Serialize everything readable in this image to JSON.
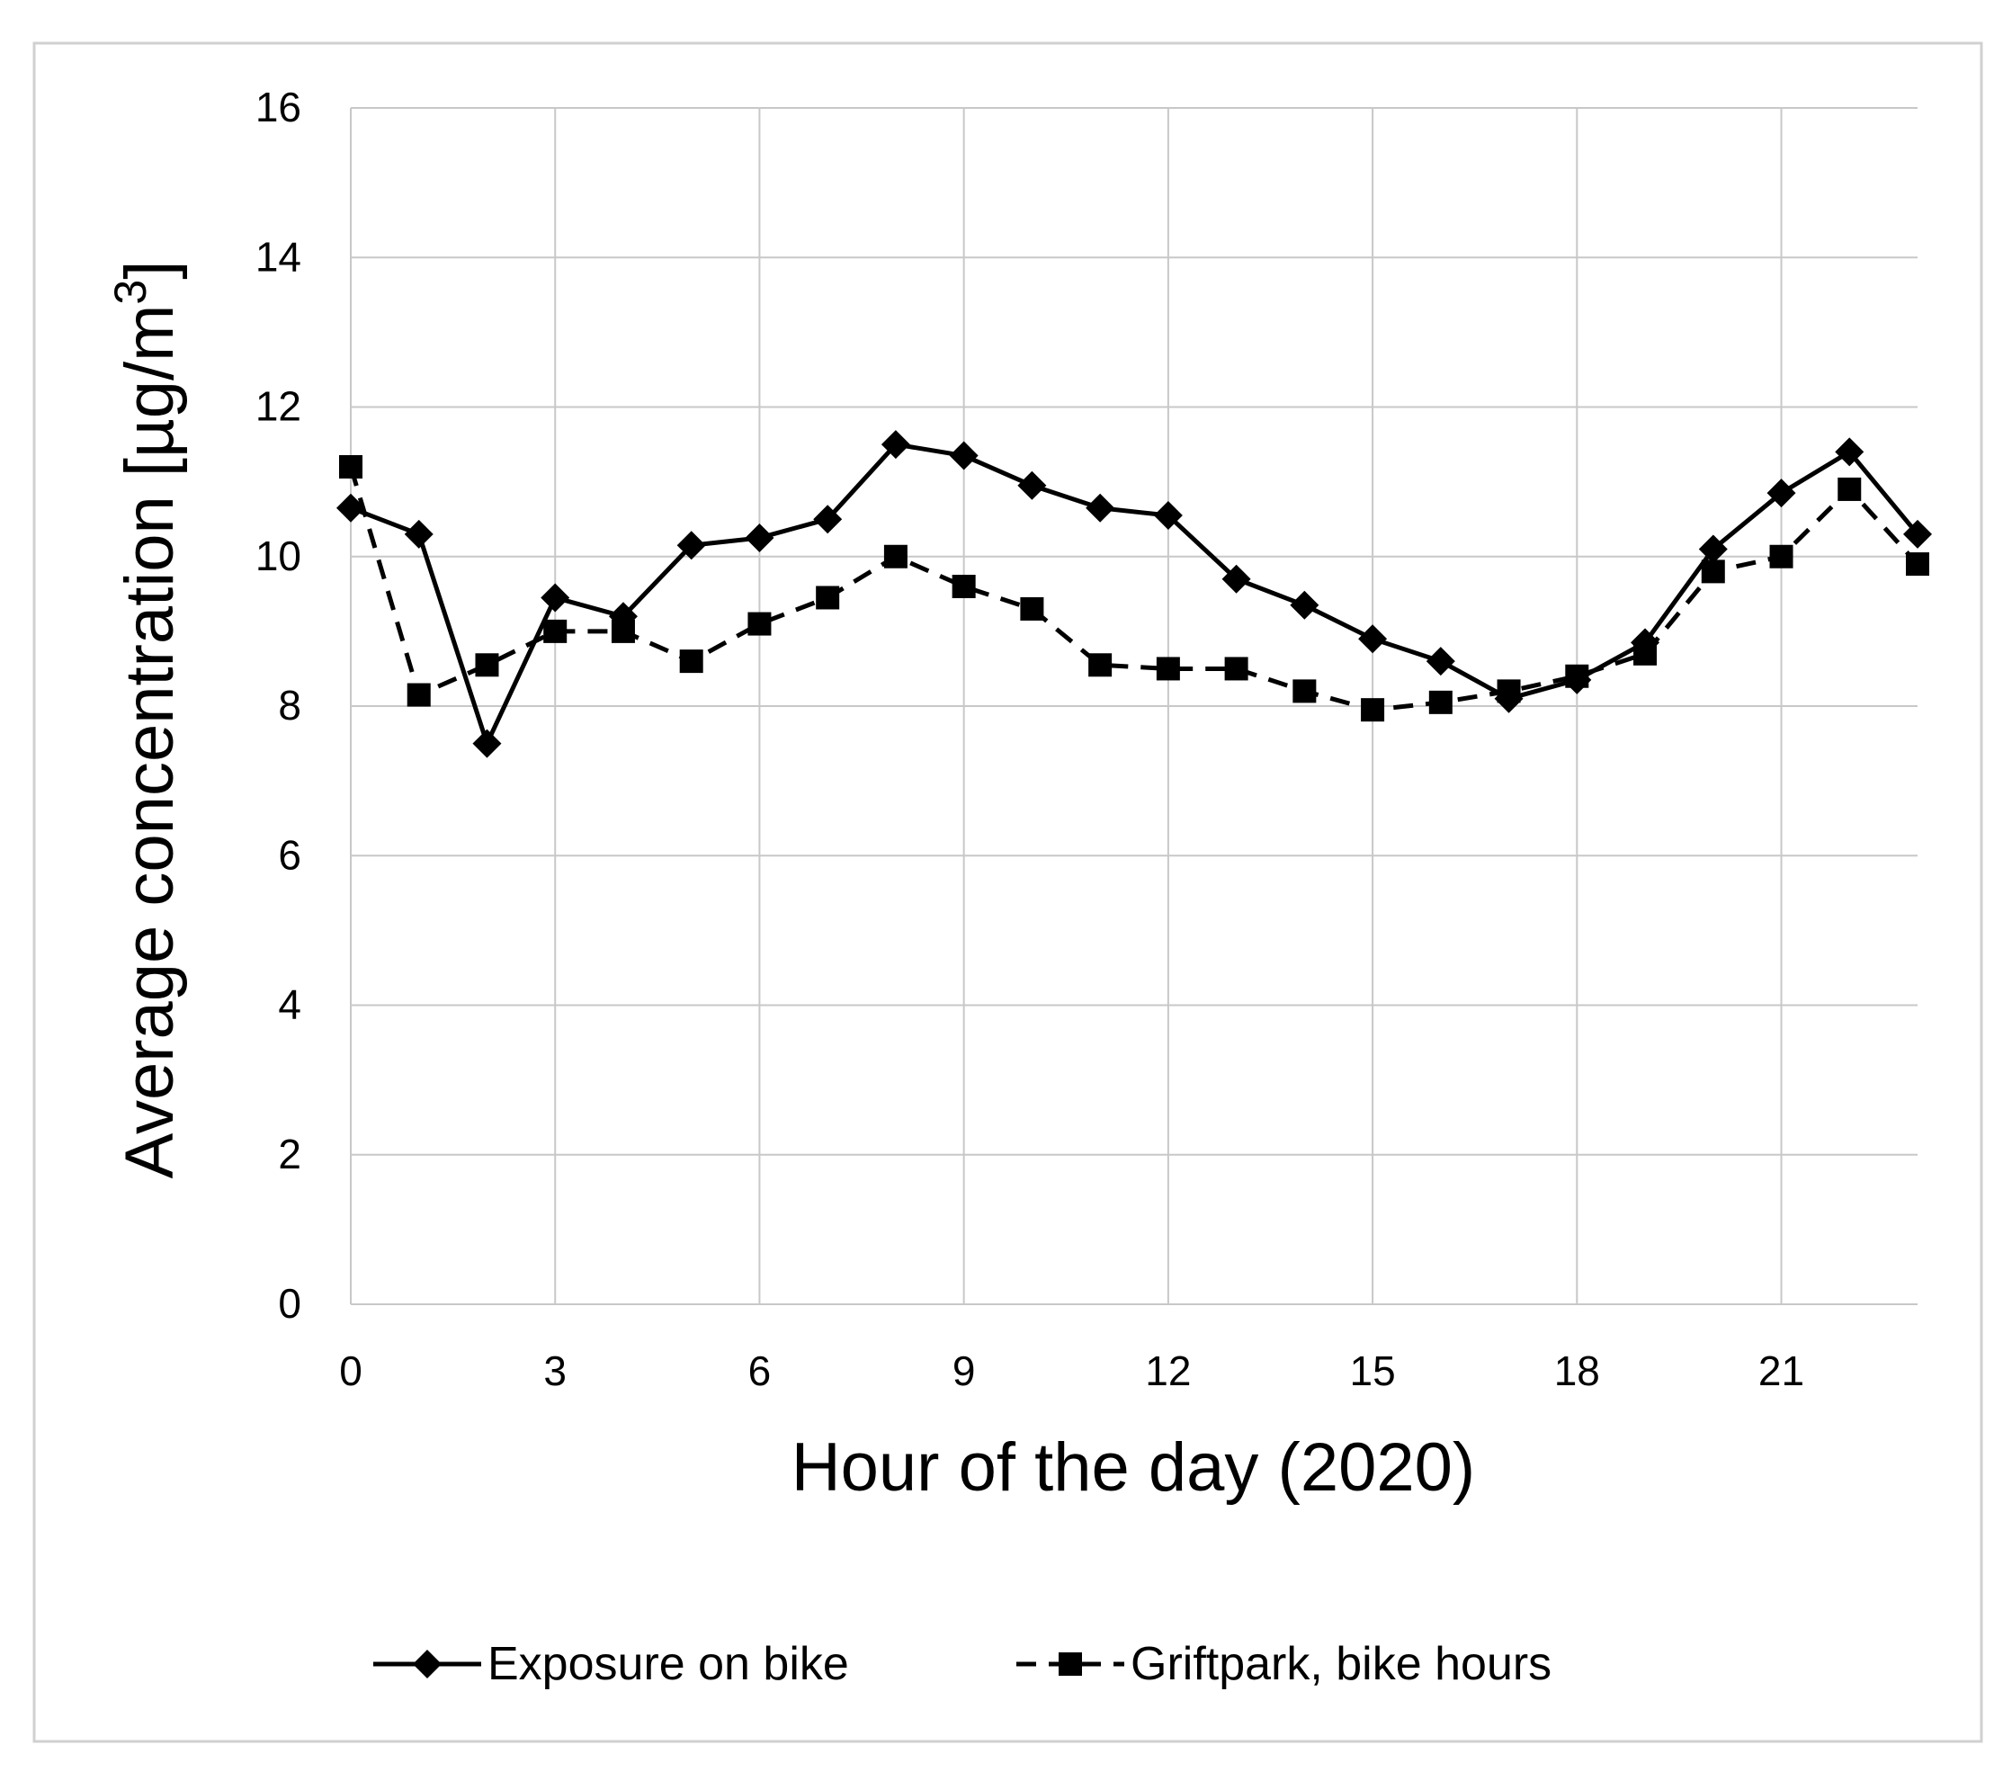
{
  "chart_data": {
    "type": "line",
    "xlabel": "Hour of the day (2020)",
    "ylabel_main": "Average concentration  [µg/m",
    "ylabel_sup": "3",
    "ylabel_end": "]",
    "xlim": [
      0,
      23
    ],
    "ylim": [
      0,
      16
    ],
    "xticks": [
      0,
      3,
      6,
      9,
      12,
      15,
      18,
      21
    ],
    "yticks": [
      0,
      2,
      4,
      6,
      8,
      10,
      12,
      14,
      16
    ],
    "grid": true,
    "legend_position": "bottom",
    "x": [
      0,
      1,
      2,
      3,
      4,
      5,
      6,
      7,
      8,
      9,
      10,
      11,
      12,
      13,
      14,
      15,
      16,
      17,
      18,
      19,
      20,
      21,
      22,
      23
    ],
    "series": [
      {
        "name": "Exposure on bike",
        "marker": "diamond",
        "line_style": "solid",
        "color": "#000000",
        "values": [
          10.65,
          10.3,
          7.5,
          9.45,
          9.2,
          10.15,
          10.25,
          10.5,
          11.5,
          11.35,
          10.95,
          10.65,
          10.55,
          9.7,
          9.35,
          8.9,
          8.6,
          8.1,
          8.35,
          8.85,
          10.1,
          10.85,
          11.4,
          10.3
        ]
      },
      {
        "name": "Griftpark, bike hours",
        "marker": "square",
        "line_style": "dashed",
        "color": "#000000",
        "values": [
          11.2,
          8.15,
          8.55,
          9.0,
          9.0,
          8.6,
          9.1,
          9.45,
          10.0,
          9.6,
          9.3,
          8.55,
          8.5,
          8.5,
          8.2,
          7.95,
          8.05,
          8.2,
          8.4,
          8.7,
          9.8,
          10.0,
          10.9,
          9.9
        ]
      }
    ]
  },
  "colors": {
    "grid": "#c8c8c8",
    "frame": "#d0d0d0",
    "series": "#000000"
  }
}
